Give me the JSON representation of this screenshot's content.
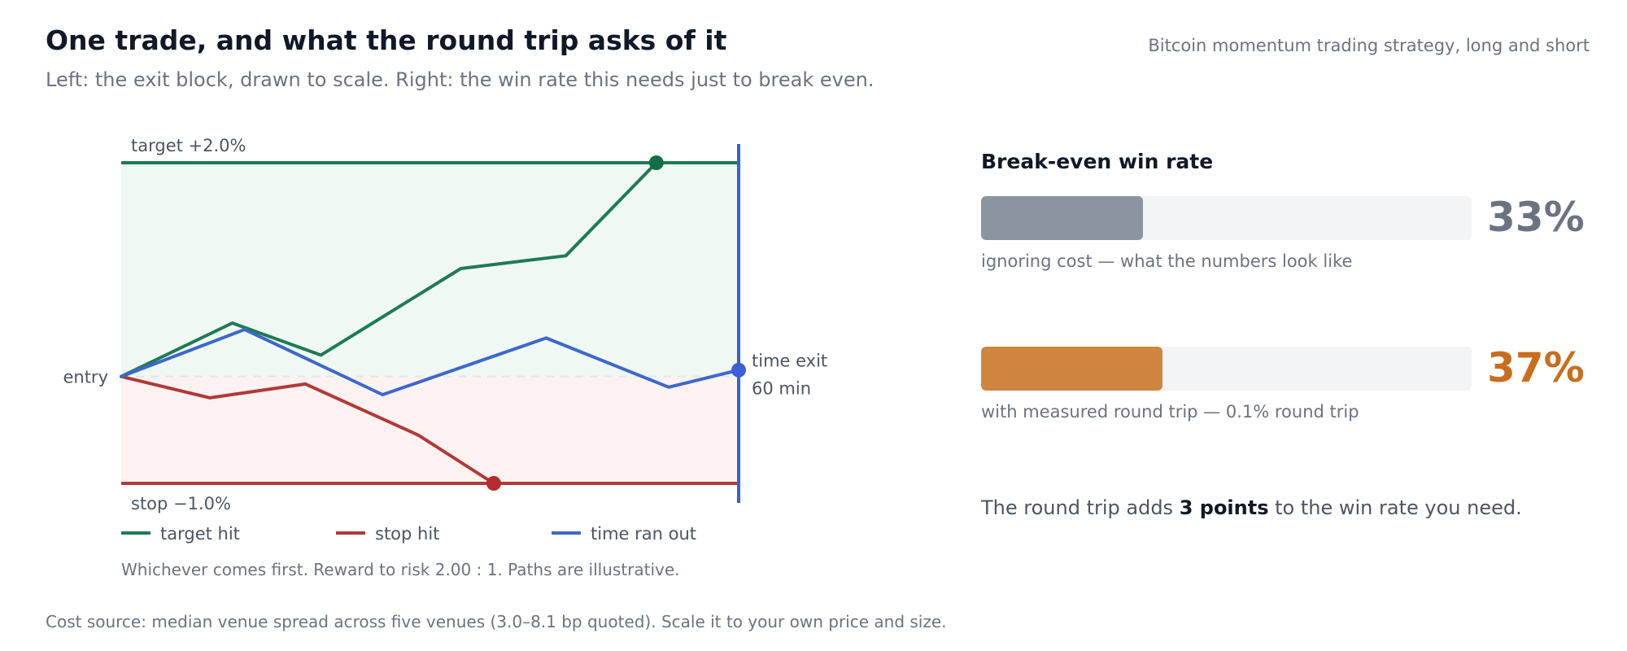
{
  "header": {
    "title": "One trade, and what the round trip asks of it",
    "subtitle": "Left: the exit block, drawn to scale. Right: the win rate this needs just to break even.",
    "context": "Bitcoin momentum trading strategy, long and short"
  },
  "chart_data": [
    {
      "type": "line",
      "x_unit": "minutes",
      "y_unit": "% move from entry",
      "xlim": [
        0,
        60
      ],
      "ylim": [
        -1.0,
        2.0
      ],
      "labels": {
        "target": "target +2.0%",
        "stop": "stop −1.0%",
        "entry": "entry",
        "time_exit_line1": "time exit",
        "time_exit_line2": "60 min"
      },
      "levels": {
        "target": 2.0,
        "stop": -1.0,
        "entry": 0.0,
        "time_exit": 60
      },
      "series": [
        {
          "name": "target hit",
          "color": "#1f7a55",
          "end_marker": "#0f7048",
          "x": [
            0,
            10.8,
            19.4,
            33,
            43.2,
            52
          ],
          "y": [
            0,
            0.5,
            0.2,
            1.01,
            1.13,
            2.0
          ]
        },
        {
          "name": "stop hit",
          "color": "#b03a38",
          "end_marker": "#b32d2d",
          "x": [
            0,
            8.6,
            17.9,
            28.9,
            36.2
          ],
          "y": [
            0,
            -0.2,
            -0.07,
            -0.55,
            -1.0
          ]
        },
        {
          "name": "time ran out",
          "color": "#3d68c8",
          "end_marker": "#3b5fd6",
          "x": [
            0,
            12,
            25.4,
            41.3,
            53.2,
            60
          ],
          "y": [
            0,
            0.44,
            -0.17,
            0.36,
            -0.1,
            0.06
          ]
        }
      ]
    },
    {
      "type": "bar",
      "title": "Break-even win rate",
      "xlim": [
        0,
        100
      ],
      "bars": [
        {
          "value": 33,
          "label": "33%",
          "note": "ignoring cost — what the numbers look like",
          "color": "#8b95a1",
          "value_color": "#6b7280"
        },
        {
          "value": 37,
          "label": "37%",
          "note": "with measured round trip — 0.1% round trip",
          "color": "#cd853f",
          "value_color": "#c96d1e"
        }
      ]
    }
  ],
  "caption": "Whichever comes first. Reward to risk 2.00 : 1. Paths are illustrative.",
  "summary": {
    "prefix": "The round trip adds ",
    "emphasis": "3 points",
    "suffix": " to the win rate you need."
  },
  "footer": "Cost source: median venue spread across five venues (3.0–8.1 bp quoted). Scale it to your own price and size."
}
